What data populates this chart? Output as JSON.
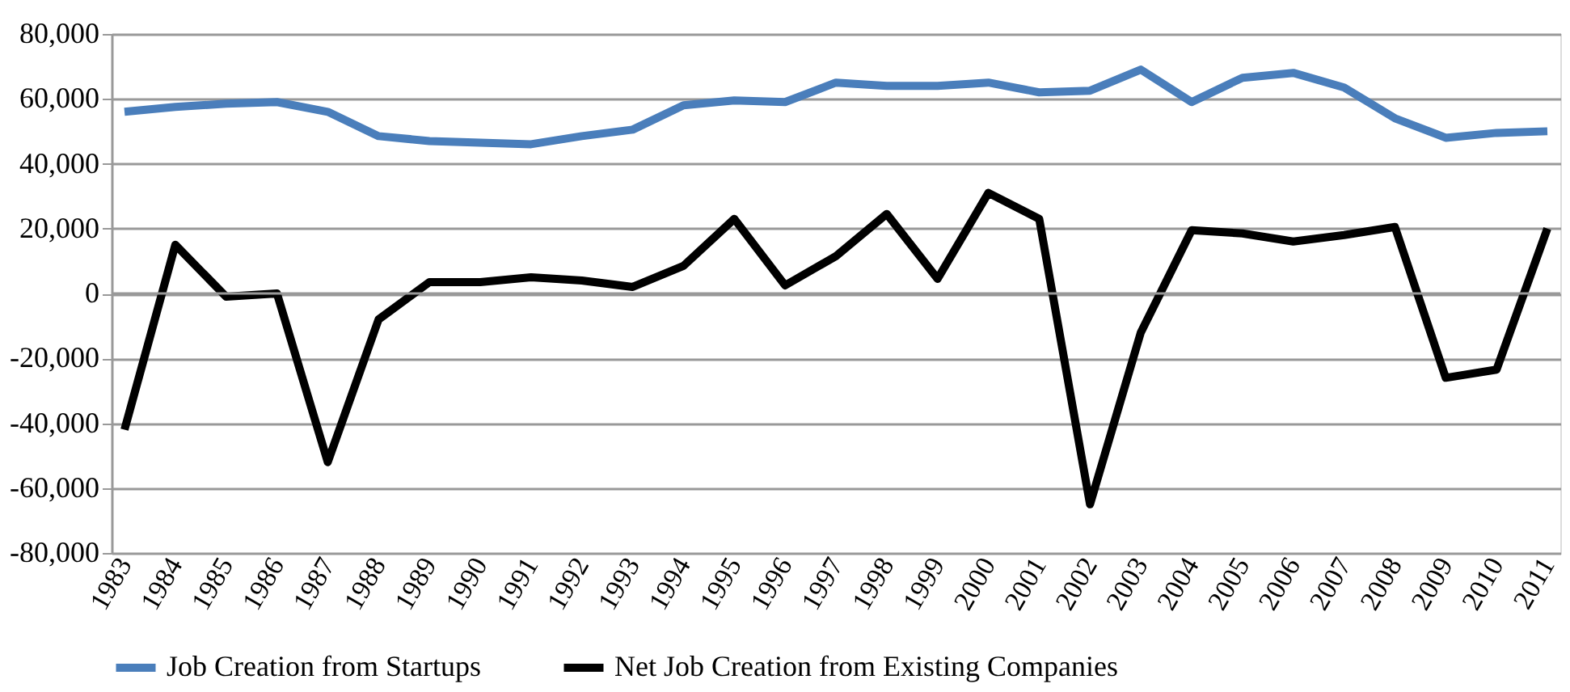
{
  "chart_data": {
    "type": "line",
    "categories": [
      "1983",
      "1984",
      "1985",
      "1986",
      "1987",
      "1988",
      "1989",
      "1990",
      "1991",
      "1992",
      "1993",
      "1994",
      "1995",
      "1996",
      "1997",
      "1998",
      "1999",
      "2000",
      "2001",
      "2002",
      "2003",
      "2004",
      "2005",
      "2006",
      "2007",
      "2008",
      "2009",
      "2010",
      "2011"
    ],
    "series": [
      {
        "name": "Job Creation from Startups",
        "color": "#4a7ebb",
        "values": [
          56000,
          57500,
          58500,
          59000,
          56000,
          48500,
          47000,
          46500,
          46000,
          48500,
          50500,
          58000,
          59500,
          59000,
          65000,
          64000,
          64000,
          65000,
          62000,
          62500,
          69000,
          59000,
          66500,
          68000,
          63500,
          54000,
          48000,
          49500,
          50000
        ]
      },
      {
        "name": "Net Job Creation from Existing Companies",
        "color": "#000000",
        "values": [
          -42000,
          15000,
          -1000,
          0,
          -52000,
          -8000,
          3500,
          3500,
          5000,
          4000,
          2000,
          8500,
          23000,
          2500,
          11500,
          24500,
          4500,
          31000,
          23000,
          -65000,
          -12000,
          19500,
          18500,
          16000,
          18000,
          20500,
          -26000,
          -23500,
          20000
        ]
      }
    ],
    "ylim": [
      -80000,
      80000
    ],
    "yticks": [
      {
        "value": -80000,
        "label": "-80,000"
      },
      {
        "value": -60000,
        "label": "-60,000"
      },
      {
        "value": -40000,
        "label": "-40,000"
      },
      {
        "value": -20000,
        "label": "-20,000"
      },
      0,
      {
        "value": 20000,
        "label": "20,000"
      },
      {
        "value": 40000,
        "label": "40,000"
      },
      {
        "value": 60000,
        "label": "60,000"
      },
      {
        "value": 80000,
        "label": "80,000"
      }
    ],
    "grid": "y",
    "legend": "bottom",
    "marker": "none",
    "line_style": "solid"
  }
}
